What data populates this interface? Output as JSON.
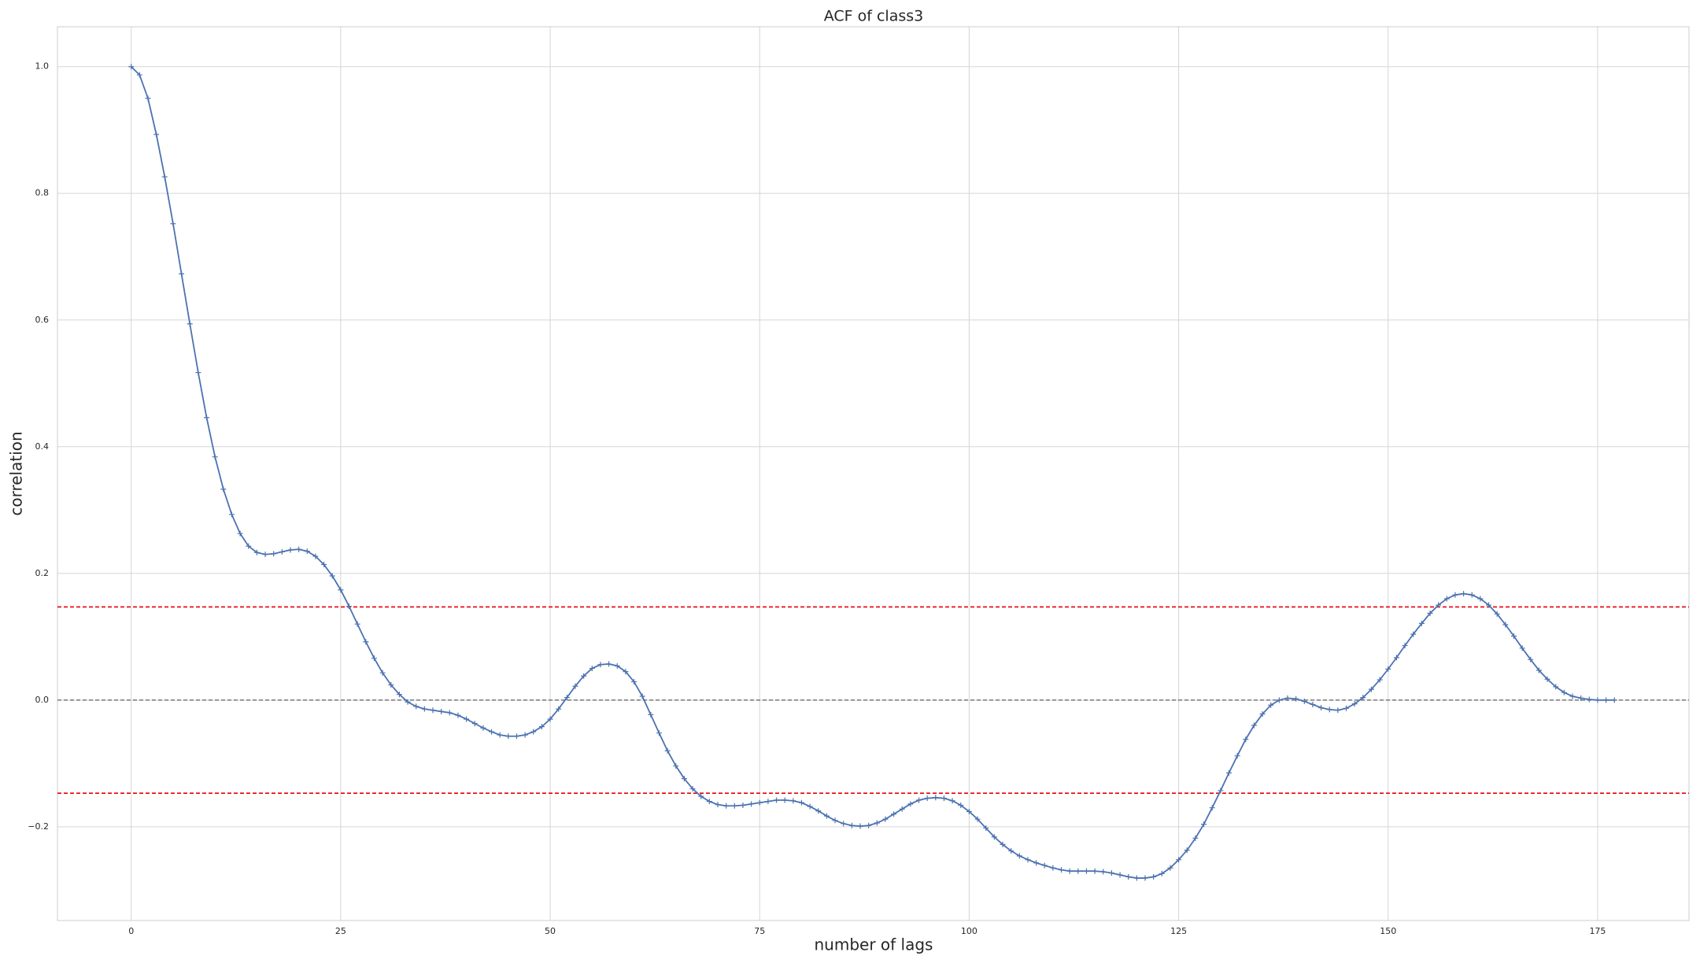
{
  "chart_data": {
    "type": "line",
    "title": "ACF of class3",
    "xlabel": "number of lags",
    "ylabel": "correlation",
    "x": [
      0,
      1,
      2,
      3,
      4,
      5,
      6,
      7,
      8,
      9,
      10,
      11,
      12,
      13,
      14,
      15,
      16,
      17,
      18,
      19,
      20,
      21,
      22,
      23,
      24,
      25,
      26,
      27,
      28,
      29,
      30,
      31,
      32,
      33,
      34,
      35,
      36,
      37,
      38,
      39,
      40,
      41,
      42,
      43,
      44,
      45,
      46,
      47,
      48,
      49,
      50,
      51,
      52,
      53,
      54,
      55,
      56,
      57,
      58,
      59,
      60,
      61,
      62,
      63,
      64,
      65,
      66,
      67,
      68,
      69,
      70,
      71,
      72,
      73,
      74,
      75,
      76,
      77,
      78,
      79,
      80,
      81,
      82,
      83,
      84,
      85,
      86,
      87,
      88,
      89,
      90,
      91,
      92,
      93,
      94,
      95,
      96,
      97,
      98,
      99,
      100,
      101,
      102,
      103,
      104,
      105,
      106,
      107,
      108,
      109,
      110,
      111,
      112,
      113,
      114,
      115,
      116,
      117,
      118,
      119,
      120,
      121,
      122,
      123,
      124,
      125,
      126,
      127,
      128,
      129,
      130,
      131,
      132,
      133,
      134,
      135,
      136,
      137,
      138,
      139,
      140,
      141,
      142,
      143,
      144,
      145,
      146,
      147,
      148,
      149,
      150,
      151,
      152,
      153,
      154,
      155,
      156,
      157,
      158,
      159,
      160,
      161,
      162,
      163,
      164,
      165,
      166,
      167,
      168,
      169,
      170,
      171,
      172,
      173,
      174,
      175,
      176,
      177
    ],
    "values": [
      1.0,
      0.987,
      0.95,
      0.893,
      0.826,
      0.752,
      0.673,
      0.594,
      0.517,
      0.446,
      0.384,
      0.333,
      0.293,
      0.263,
      0.243,
      0.233,
      0.23,
      0.231,
      0.234,
      0.237,
      0.238,
      0.235,
      0.227,
      0.214,
      0.196,
      0.174,
      0.148,
      0.12,
      0.092,
      0.066,
      0.043,
      0.024,
      0.009,
      -0.003,
      -0.01,
      -0.014,
      -0.016,
      -0.018,
      -0.02,
      -0.024,
      -0.03,
      -0.037,
      -0.044,
      -0.05,
      -0.055,
      -0.057,
      -0.057,
      -0.055,
      -0.05,
      -0.042,
      -0.03,
      -0.014,
      0.004,
      0.022,
      0.038,
      0.05,
      0.056,
      0.057,
      0.054,
      0.045,
      0.029,
      0.006,
      -0.023,
      -0.052,
      -0.08,
      -0.104,
      -0.124,
      -0.14,
      -0.152,
      -0.16,
      -0.165,
      -0.167,
      -0.167,
      -0.166,
      -0.164,
      -0.162,
      -0.16,
      -0.158,
      -0.158,
      -0.159,
      -0.162,
      -0.168,
      -0.175,
      -0.183,
      -0.19,
      -0.195,
      -0.198,
      -0.199,
      -0.198,
      -0.194,
      -0.188,
      -0.18,
      -0.172,
      -0.164,
      -0.158,
      -0.155,
      -0.154,
      -0.155,
      -0.159,
      -0.166,
      -0.176,
      -0.188,
      -0.202,
      -0.216,
      -0.228,
      -0.238,
      -0.246,
      -0.252,
      -0.257,
      -0.261,
      -0.265,
      -0.268,
      -0.27,
      -0.27,
      -0.27,
      -0.27,
      -0.271,
      -0.273,
      -0.276,
      -0.279,
      -0.281,
      -0.281,
      -0.279,
      -0.274,
      -0.265,
      -0.252,
      -0.237,
      -0.218,
      -0.196,
      -0.17,
      -0.143,
      -0.115,
      -0.088,
      -0.062,
      -0.04,
      -0.022,
      -0.008,
      0.0,
      0.003,
      0.002,
      -0.002,
      -0.007,
      -0.012,
      -0.015,
      -0.016,
      -0.013,
      -0.006,
      0.004,
      0.017,
      0.032,
      0.049,
      0.067,
      0.086,
      0.104,
      0.121,
      0.137,
      0.15,
      0.16,
      0.166,
      0.168,
      0.166,
      0.16,
      0.15,
      0.136,
      0.119,
      0.101,
      0.082,
      0.064,
      0.047,
      0.033,
      0.021,
      0.012,
      0.006,
      0.003,
      0.001,
      0.0,
      0.0,
      0.0
    ],
    "color": "#4c72b0",
    "marker": "+",
    "hlines": [
      {
        "value": 0.147,
        "color": "#e8000b",
        "style": "dashed"
      },
      {
        "value": 0.0,
        "color": "#808080",
        "style": "dashed"
      },
      {
        "value": -0.147,
        "color": "#e8000b",
        "style": "dashed"
      }
    ],
    "xlim": [
      -8.8,
      185.9
    ],
    "ylim": [
      -0.348,
      1.063
    ],
    "xticks": [
      0,
      25,
      50,
      75,
      100,
      125,
      150,
      175
    ],
    "yticks": [
      {
        "value": -0.2,
        "label": "−0.2"
      },
      {
        "value": 0.0,
        "label": "0.0"
      },
      {
        "value": 0.2,
        "label": "0.2"
      },
      {
        "value": 0.4,
        "label": "0.4"
      },
      {
        "value": 0.6,
        "label": "0.6"
      },
      {
        "value": 0.8,
        "label": "0.8"
      },
      {
        "value": 1.0,
        "label": "1.0"
      }
    ],
    "grid": true
  }
}
